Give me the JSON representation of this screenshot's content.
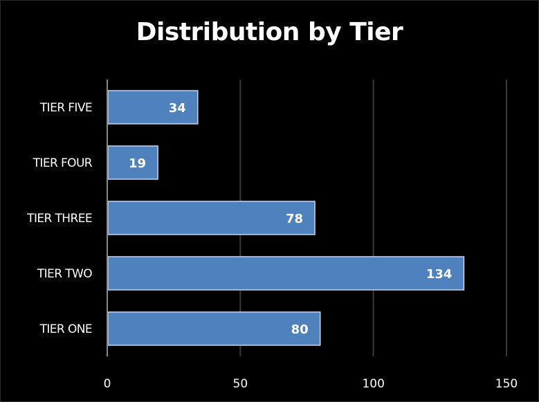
{
  "chart_data": {
    "type": "bar",
    "orientation": "horizontal",
    "title": "Distribution by Tier",
    "categories": [
      "TIER ONE",
      "TIER TWO",
      "TIER THREE",
      "TIER FOUR",
      "TIER FIVE"
    ],
    "values": [
      80,
      134,
      78,
      19,
      34
    ],
    "xlim": [
      0,
      150
    ],
    "xticks": [
      0,
      50,
      100,
      150
    ],
    "xlabel": "",
    "ylabel": "",
    "grid": true,
    "legend": "none",
    "data_labels": true,
    "colors": {
      "background": "#000000",
      "bar_fill": "#4f81bd",
      "bar_border": "#c7d6ea",
      "gridline": "#3a3a3a",
      "axis": "#8a8a8a",
      "text": "#ffffff"
    }
  }
}
